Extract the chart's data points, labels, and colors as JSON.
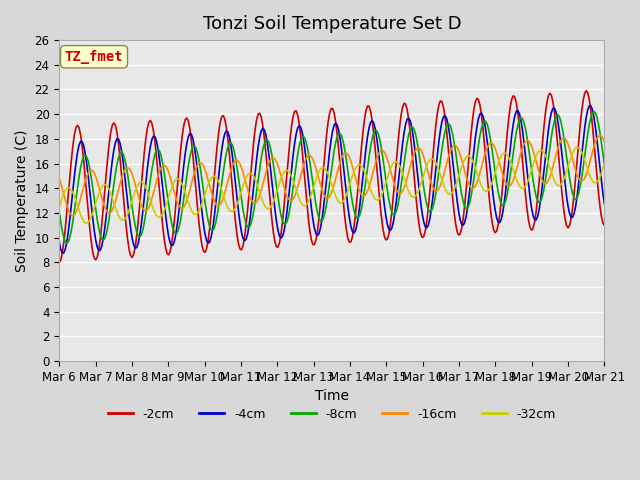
{
  "title": "Tonzi Soil Temperature Set D",
  "xlabel": "Time",
  "ylabel": "Soil Temperature (C)",
  "ylim": [
    0,
    26
  ],
  "x_tick_labels": [
    "Mar 6",
    "Mar 7",
    "Mar 8",
    "Mar 9",
    "Mar 10",
    "Mar 11",
    "Mar 12",
    "Mar 13",
    "Mar 14",
    "Mar 15",
    "Mar 16",
    "Mar 17",
    "Mar 18",
    "Mar 19",
    "Mar 20",
    "Mar 21"
  ],
  "series_labels": [
    "-2cm",
    "-4cm",
    "-8cm",
    "-16cm",
    "-32cm"
  ],
  "series_colors": [
    "#cc0000",
    "#0000cc",
    "#00aa00",
    "#ff8800",
    "#cccc00"
  ],
  "annotation_text": "TZ_fmet",
  "annotation_color": "#cc0000",
  "annotation_bg": "#ffffcc",
  "fig_bg": "#d8d8d8",
  "plot_bg": "#e8e8e8",
  "title_fontsize": 13,
  "axis_fontsize": 10,
  "tick_fontsize": 8.5,
  "legend_fontsize": 9
}
